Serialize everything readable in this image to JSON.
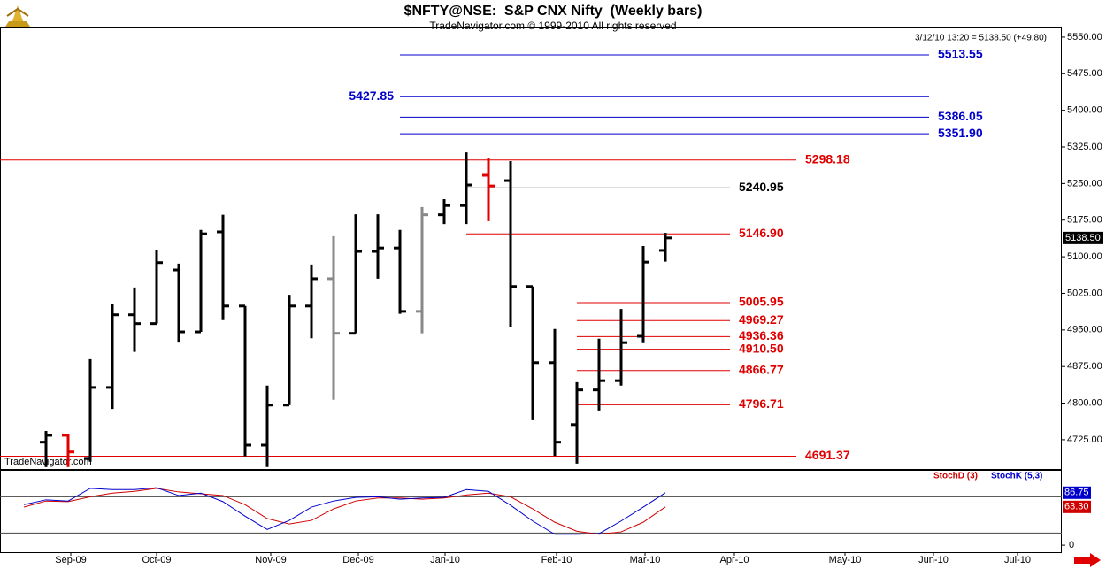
{
  "chart_data": [
    {
      "type": "ohlc",
      "title": "$NFTY@NSE:  S&P CNX Nifty  (Weekly bars)",
      "subtitle": "TradeNavigator.com © 1999-2010 All rights reserved",
      "watermark": "TradeNavigator.com",
      "quote": "3/12/10 13:20 = 5138.50 (+49.80)",
      "last_price": {
        "value": 5138.5,
        "label": "5138.50"
      },
      "x": [
        0,
        1,
        2,
        3,
        4,
        5,
        6,
        7,
        8,
        9,
        10,
        11,
        12,
        13,
        14,
        15,
        16,
        17,
        18,
        19,
        20,
        21,
        22,
        23,
        24,
        25,
        26,
        27,
        28,
        29
      ],
      "open": [
        null,
        4720,
        4734,
        4687,
        4832,
        4981,
        4963,
        5073,
        4946,
        5151,
        4999,
        4714,
        4796,
        4999,
        5055,
        4943,
        5111,
        5118,
        4988,
        5186,
        5205,
        5267,
        5256,
        5039,
        4883,
        4756,
        4827,
        4846,
        4937,
        5113
      ],
      "high": [
        null,
        4743,
        4736,
        4890,
        5004,
        5037,
        5113,
        5086,
        5155,
        5186,
        4999,
        4836,
        5022,
        5084,
        5142,
        5187,
        5187,
        5155,
        5202,
        5218,
        5314,
        5303,
        5296,
        5039,
        4952,
        4843,
        4932,
        4993,
        5122,
        5149
      ],
      "low": [
        null,
        4669,
        4669,
        4680,
        4788,
        4905,
        4963,
        4924,
        4946,
        4970,
        4691,
        4669,
        4796,
        4933,
        4807,
        4943,
        5055,
        4983,
        4943,
        5167,
        5167,
        5173,
        4957,
        4765,
        4692,
        4676,
        4785,
        4836,
        4923,
        5090
      ],
      "close": [
        null,
        4734,
        4700,
        4832,
        4981,
        4963,
        5088,
        4946,
        5147,
        4999,
        4714,
        4796,
        4999,
        5055,
        4943,
        5111,
        5118,
        4988,
        5186,
        5205,
        5247,
        5245,
        5039,
        4883,
        4720,
        4827,
        4846,
        4924,
        5089,
        5138.5
      ],
      "colors": [
        null,
        "#000000",
        "#e00000",
        "#000000",
        "#000000",
        "#000000",
        "#000000",
        "#000000",
        "#000000",
        "#000000",
        "#000000",
        "#000000",
        "#000000",
        "#000000",
        "#888888",
        "#000000",
        "#000000",
        "#000000",
        "#888888",
        "#000000",
        "#000000",
        "#e00000",
        "#000000",
        "#000000",
        "#000000",
        "#000000",
        "#000000",
        "#000000",
        "#000000",
        "#000000"
      ],
      "xlim": [
        -1.08,
        46.92
      ],
      "ylim": [
        4665,
        5568
      ],
      "yticks": [
        {
          "value": 5550,
          "label": "5550.00"
        },
        {
          "value": 5475,
          "label": "5475.00"
        },
        {
          "value": 5400,
          "label": "5400.00"
        },
        {
          "value": 5325,
          "label": "5325.00"
        },
        {
          "value": 5250,
          "label": "5250.00"
        },
        {
          "value": 5175,
          "label": "5175.00"
        },
        {
          "value": 5100,
          "label": "5100.00"
        },
        {
          "value": 5025,
          "label": "5025.00"
        },
        {
          "value": 4950,
          "label": "4950.00"
        },
        {
          "value": 4875,
          "label": "4875.00"
        },
        {
          "value": 4800,
          "label": "4800.00"
        },
        {
          "value": 4725,
          "label": "4725.00"
        }
      ],
      "levels": [
        {
          "value": 5513.55,
          "color": "#0000cc"
        },
        {
          "value": 5427.85,
          "color": "#0000cc"
        },
        {
          "value": 5386.05,
          "color": "#0000cc"
        },
        {
          "value": 5351.9,
          "label": "5351.90",
          "color": "#0000cc"
        },
        {
          "value": 5298.18,
          "color": "#e00000"
        },
        {
          "value": 5240.95,
          "color": "#000000"
        },
        {
          "value": 5146.9,
          "label": "5146.90",
          "color": "#e00000"
        },
        {
          "value": 5005.95,
          "color": "#e00000"
        },
        {
          "value": 4969.27,
          "color": "#e00000"
        },
        {
          "value": 4936.36,
          "color": "#e00000"
        },
        {
          "value": 4910.5,
          "label": "4910.50",
          "color": "#e00000"
        },
        {
          "value": 4866.77,
          "color": "#e00000"
        },
        {
          "value": 4796.71,
          "color": "#e00000"
        },
        {
          "value": 4691.37,
          "color": "#e00000"
        }
      ]
    },
    {
      "type": "line",
      "x": [
        0,
        1,
        2,
        3,
        4,
        5,
        6,
        7,
        8,
        9,
        10,
        11,
        12,
        13,
        14,
        15,
        16,
        17,
        18,
        19,
        20,
        21,
        22,
        23,
        24,
        25,
        26,
        27,
        28,
        29
      ],
      "series": [
        {
          "name": "StochD (3)",
          "color": "#d00000",
          "values": [
            63,
            73,
            72,
            80,
            86,
            89,
            94,
            88,
            85,
            82,
            67,
            44,
            35,
            41,
            60,
            73,
            78,
            78,
            76,
            78,
            83,
            86,
            80,
            60,
            38,
            23,
            18,
            22,
            38,
            63.3
          ],
          "end_label": "63.30"
        },
        {
          "name": "StochK (5,3)",
          "color": "#0000cc",
          "values": [
            67,
            75,
            73,
            94,
            92,
            92,
            95,
            82,
            86,
            72,
            48,
            26,
            41,
            63,
            73,
            79,
            80,
            76,
            78,
            79,
            92,
            89,
            66,
            40,
            18,
            18,
            19,
            40,
            63,
            86.75
          ]
        }
      ],
      "xlim": [
        -1.08,
        46.92
      ],
      "ylim": [
        -13,
        123
      ],
      "yticks": [
        0
      ],
      "levels": [
        20,
        80
      ],
      "xticks": [
        {
          "value": 2.12,
          "label": "Sep-09"
        },
        {
          "value": 6.0,
          "label": "Oct-09"
        },
        {
          "value": 11.16,
          "label": "Nov-09"
        },
        {
          "value": 15.12,
          "label": "Dec-09"
        },
        {
          "value": 19.04,
          "label": "Jan-10"
        },
        {
          "value": 24.08,
          "label": "Feb-10"
        },
        {
          "value": 28.08,
          "label": "Mar-10"
        },
        {
          "value": 32.12,
          "label": "Apr-10"
        },
        {
          "value": 37.12,
          "label": "May-10"
        },
        {
          "value": 41.12,
          "label": "Jun-10"
        },
        {
          "value": 44.92,
          "label": "Jul-10"
        }
      ]
    }
  ]
}
